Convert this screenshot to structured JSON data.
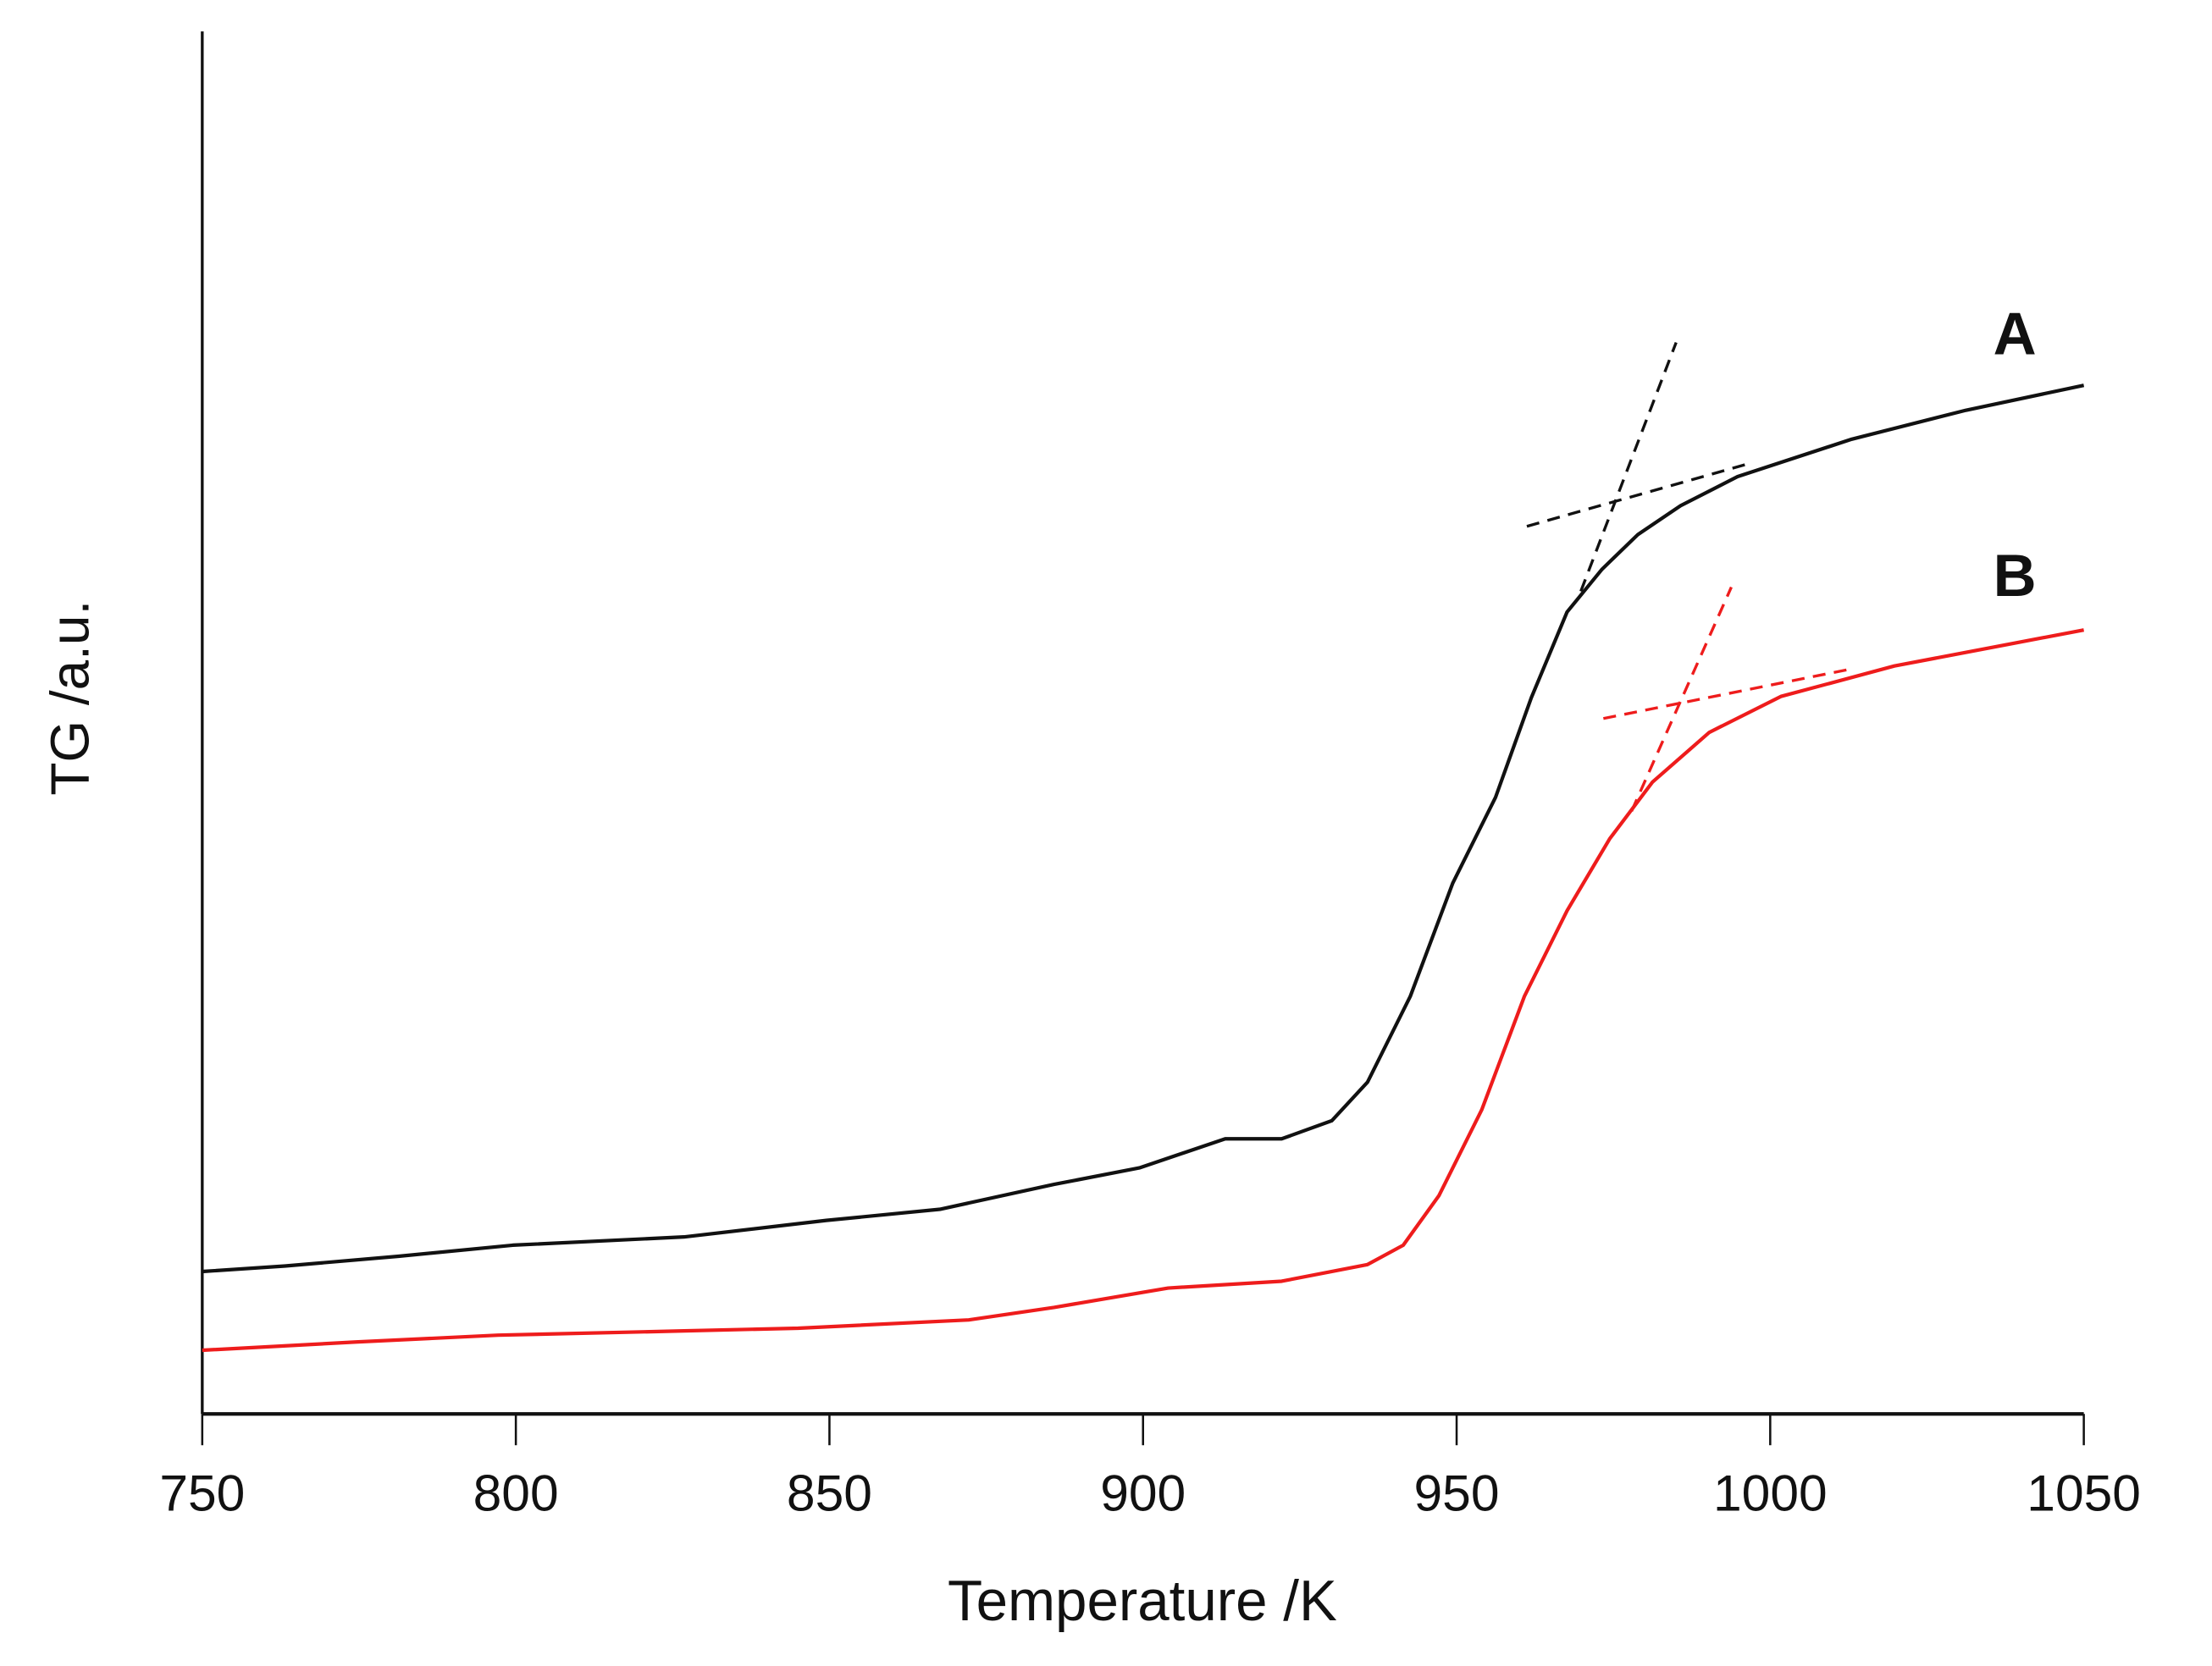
{
  "chart_data": {
    "type": "line",
    "title": "",
    "xlabel": "Temperature /K",
    "ylabel": "TG /a.u.",
    "xlim": [
      750,
      1050
    ],
    "ylim": [
      0,
      100
    ],
    "xticks": [
      750,
      800,
      850,
      900,
      950,
      1000,
      1050
    ],
    "grid": false,
    "legend": "none (inline curve labels)",
    "series": [
      {
        "name": "A",
        "color": "#111111",
        "x": [
          750,
          763.2,
          781.3,
          799.5,
          826.8,
          849.5,
          867.6,
          885.8,
          899.4,
          913.1,
          922.1,
          930.1,
          935.8,
          942.6,
          949.4,
          956.2,
          961.9,
          967.6,
          973.2,
          978.9,
          985.7,
          994.8,
          1013.0,
          1031.2,
          1050
        ],
        "y": [
          10.3,
          10.7,
          11.4,
          12.2,
          12.8,
          14.0,
          14.8,
          16.6,
          17.8,
          19.9,
          19.9,
          21.2,
          24.0,
          30.2,
          38.4,
          44.6,
          51.8,
          58.0,
          61.1,
          63.6,
          65.7,
          67.8,
          70.5,
          72.6,
          74.4
        ],
        "label_at": [
          1039,
          78.1
        ],
        "tangents": [
          [
            [
              961.2,
              64.2
            ],
            [
              997.1,
              68.8
            ]
          ],
          [
            [
              969.8,
              59.5
            ],
            [
              985.0,
              77.5
            ]
          ]
        ]
      },
      {
        "name": "B",
        "color": "#ee1c1c",
        "x": [
          750,
          774.5,
          797.2,
          826.8,
          845.0,
          872.2,
          885.8,
          904.0,
          922.1,
          935.8,
          941.5,
          947.2,
          954.0,
          960.8,
          967.6,
          974.4,
          981.2,
          990.3,
          1001.7,
          1019.8,
          1050
        ],
        "y": [
          4.6,
          5.2,
          5.7,
          6.0,
          6.2,
          6.8,
          7.7,
          9.1,
          9.6,
          10.8,
          12.2,
          15.8,
          22.0,
          30.2,
          36.4,
          41.6,
          45.7,
          49.3,
          51.9,
          54.1,
          56.7
        ],
        "label_at": [
          1039,
          60.6
        ],
        "tangents": [
          [
            [
              973.4,
              50.3
            ],
            [
              1013.1,
              53.9
            ]
          ],
          [
            [
              977.9,
              43.6
            ],
            [
              993.8,
              59.8
            ]
          ]
        ]
      }
    ]
  }
}
